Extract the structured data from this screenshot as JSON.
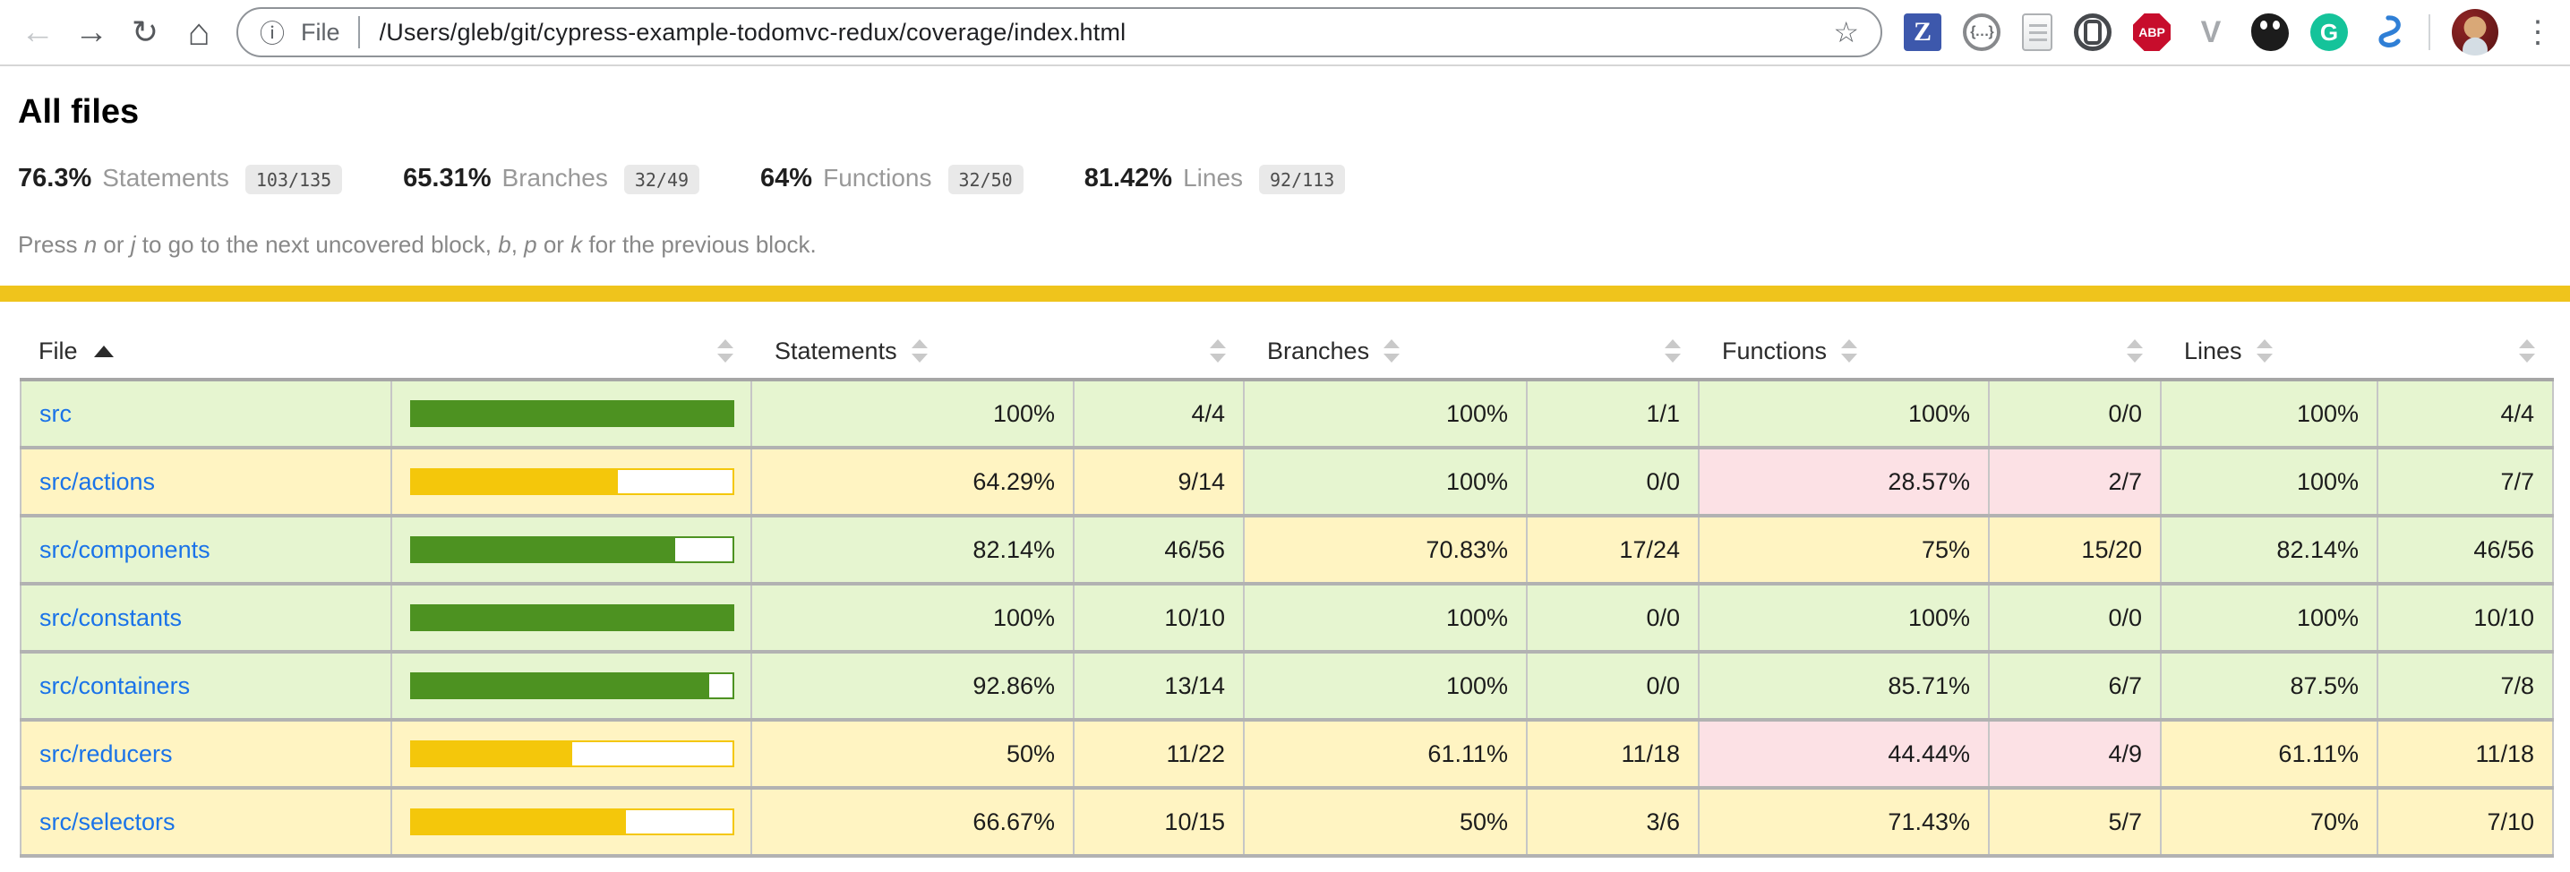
{
  "browser": {
    "nav": {
      "back_glyph": "←",
      "forward_glyph": "→",
      "reload_glyph": "↻",
      "home_glyph": "⌂"
    },
    "address": {
      "info_glyph": "ⓘ",
      "scheme_label": "File",
      "url": "/Users/gleb/git/cypress-example-todomvc-redux/coverage/index.html",
      "star_glyph": "☆"
    },
    "extensions": [
      {
        "id": "z-extension",
        "glyph": "Z"
      },
      {
        "id": "json-viewer",
        "glyph": "{…}"
      },
      {
        "id": "userscript-document",
        "glyph": ""
      },
      {
        "id": "onepassword",
        "glyph": ""
      },
      {
        "id": "adblock-plus",
        "glyph": "ABP"
      },
      {
        "id": "vue-devtools",
        "glyph": "V"
      },
      {
        "id": "kuker",
        "glyph": ""
      },
      {
        "id": "grammarly",
        "glyph": "G"
      },
      {
        "id": "blue-swirl",
        "glyph": ""
      }
    ],
    "menu_glyph": "⋮"
  },
  "page": {
    "title": "All files",
    "summary": {
      "metrics": [
        {
          "pct": "76.3%",
          "label": "Statements",
          "fraction": "103/135"
        },
        {
          "pct": "65.31%",
          "label": "Branches",
          "fraction": "32/49"
        },
        {
          "pct": "64%",
          "label": "Functions",
          "fraction": "32/50"
        },
        {
          "pct": "81.42%",
          "label": "Lines",
          "fraction": "92/113"
        }
      ]
    },
    "help": {
      "segments": [
        {
          "text": "Press "
        },
        {
          "text": "n",
          "italic": true
        },
        {
          "text": " or "
        },
        {
          "text": "j",
          "italic": true
        },
        {
          "text": " to go to the next uncovered block, "
        },
        {
          "text": "b",
          "italic": true
        },
        {
          "text": ", "
        },
        {
          "text": "p",
          "italic": true
        },
        {
          "text": " or "
        },
        {
          "text": "k",
          "italic": true
        },
        {
          "text": " for the previous block."
        }
      ]
    }
  },
  "colors": {
    "status_bar_yellow": "#efc41c",
    "high_background": "#e6f5d0",
    "medium_background": "#fff4c2",
    "low_background": "#fce1e5",
    "bar_fill_green": "#4d9221",
    "bar_fill_yellow": "#f4c70b",
    "link_blue": "#1a73e8"
  },
  "table": {
    "columns": {
      "file": "File",
      "statements": "Statements",
      "branches": "Branches",
      "functions": "Functions",
      "lines": "Lines"
    },
    "sorted_column": "file",
    "sort_direction": "ascending",
    "rows": [
      {
        "file": "src",
        "bar_pct": 100,
        "statements": {
          "pct": "100%",
          "abs": "4/4",
          "level": "high"
        },
        "branches": {
          "pct": "100%",
          "abs": "1/1",
          "level": "high"
        },
        "functions": {
          "pct": "100%",
          "abs": "0/0",
          "level": "high"
        },
        "lines": {
          "pct": "100%",
          "abs": "4/4",
          "level": "high"
        }
      },
      {
        "file": "src/actions",
        "bar_pct": 64.29,
        "statements": {
          "pct": "64.29%",
          "abs": "9/14",
          "level": "medium"
        },
        "branches": {
          "pct": "100%",
          "abs": "0/0",
          "level": "high"
        },
        "functions": {
          "pct": "28.57%",
          "abs": "2/7",
          "level": "low"
        },
        "lines": {
          "pct": "100%",
          "abs": "7/7",
          "level": "high"
        }
      },
      {
        "file": "src/components",
        "bar_pct": 82.14,
        "statements": {
          "pct": "82.14%",
          "abs": "46/56",
          "level": "high"
        },
        "branches": {
          "pct": "70.83%",
          "abs": "17/24",
          "level": "medium"
        },
        "functions": {
          "pct": "75%",
          "abs": "15/20",
          "level": "medium"
        },
        "lines": {
          "pct": "82.14%",
          "abs": "46/56",
          "level": "high"
        }
      },
      {
        "file": "src/constants",
        "bar_pct": 100,
        "statements": {
          "pct": "100%",
          "abs": "10/10",
          "level": "high"
        },
        "branches": {
          "pct": "100%",
          "abs": "0/0",
          "level": "high"
        },
        "functions": {
          "pct": "100%",
          "abs": "0/0",
          "level": "high"
        },
        "lines": {
          "pct": "100%",
          "abs": "10/10",
          "level": "high"
        }
      },
      {
        "file": "src/containers",
        "bar_pct": 92.86,
        "statements": {
          "pct": "92.86%",
          "abs": "13/14",
          "level": "high"
        },
        "branches": {
          "pct": "100%",
          "abs": "0/0",
          "level": "high"
        },
        "functions": {
          "pct": "85.71%",
          "abs": "6/7",
          "level": "high"
        },
        "lines": {
          "pct": "87.5%",
          "abs": "7/8",
          "level": "high"
        }
      },
      {
        "file": "src/reducers",
        "bar_pct": 50,
        "statements": {
          "pct": "50%",
          "abs": "11/22",
          "level": "medium"
        },
        "branches": {
          "pct": "61.11%",
          "abs": "11/18",
          "level": "medium"
        },
        "functions": {
          "pct": "44.44%",
          "abs": "4/9",
          "level": "low"
        },
        "lines": {
          "pct": "61.11%",
          "abs": "11/18",
          "level": "medium"
        }
      },
      {
        "file": "src/selectors",
        "bar_pct": 66.67,
        "statements": {
          "pct": "66.67%",
          "abs": "10/15",
          "level": "medium"
        },
        "branches": {
          "pct": "50%",
          "abs": "3/6",
          "level": "medium"
        },
        "functions": {
          "pct": "71.43%",
          "abs": "5/7",
          "level": "medium"
        },
        "lines": {
          "pct": "70%",
          "abs": "7/10",
          "level": "medium"
        }
      }
    ]
  }
}
